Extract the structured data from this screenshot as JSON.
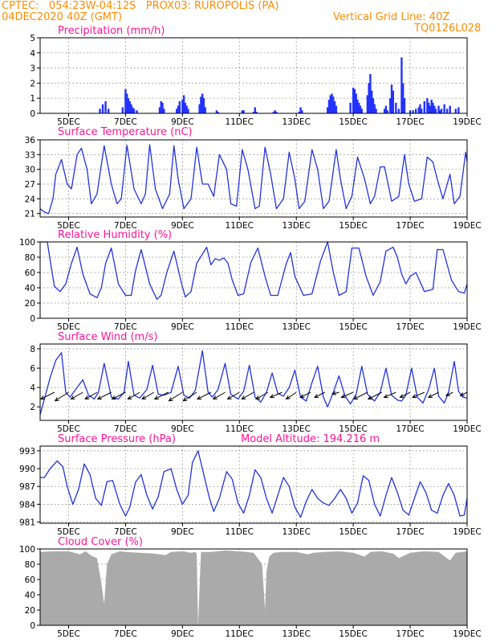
{
  "header": {
    "line1_left": "CPTEC:   054:23W-04:12S   PROX03: RUROPOLIS (PA)",
    "line2_left": "04DEC2020 40Z (GMT)",
    "line2_right": "Vertical Grid Line: 40Z",
    "line3_right": "TQ0126L028"
  },
  "x_axis": {
    "range_days": [
      4.0,
      19.0
    ],
    "ticks": [
      {
        "day": 5,
        "label": "5DEC"
      },
      {
        "day": 7,
        "label": "7DEC"
      },
      {
        "day": 9,
        "label": "9DEC"
      },
      {
        "day": 11,
        "label": "11DEC"
      },
      {
        "day": 13,
        "label": "13DEC"
      },
      {
        "day": 15,
        "label": "15DEC"
      },
      {
        "day": 17,
        "label": "17DEC"
      },
      {
        "day": 19,
        "label": "19DEC"
      }
    ]
  },
  "colors": {
    "title": "#ff1493",
    "header": "#ff8c00",
    "line": "#2233dd",
    "bar": "#2233ff",
    "cloud": "#aaaaaa",
    "wind_arrow": "#000000"
  },
  "chart_data": [
    {
      "id": "precip",
      "type": "bar",
      "title": "Precipitation (mm/h)",
      "ylim": [
        0,
        5
      ],
      "yticks": [
        "0",
        "1",
        "2",
        "3",
        "4",
        "5"
      ],
      "ytick_values": [
        0,
        1,
        2,
        3,
        4,
        5
      ],
      "x_days": [
        6.1,
        6.2,
        6.3,
        6.4,
        6.9,
        7.0,
        7.05,
        7.1,
        7.15,
        7.2,
        7.25,
        7.3,
        7.4,
        8.2,
        8.25,
        8.3,
        8.35,
        8.8,
        8.85,
        8.9,
        9.0,
        9.05,
        9.1,
        9.15,
        9.2,
        9.6,
        9.65,
        9.7,
        9.75,
        9.8,
        10.2,
        10.25,
        11.1,
        11.15,
        11.5,
        11.55,
        11.6,
        12.2,
        12.25,
        12.3,
        13.1,
        13.15,
        13.2,
        14.1,
        14.15,
        14.2,
        14.25,
        14.3,
        14.35,
        14.4,
        14.9,
        15.0,
        15.05,
        15.1,
        15.15,
        15.2,
        15.25,
        15.3,
        15.5,
        15.55,
        15.6,
        15.65,
        15.7,
        15.75,
        15.8,
        16.1,
        16.15,
        16.2,
        16.3,
        16.35,
        16.4,
        16.5,
        16.6,
        16.7,
        16.75,
        16.8,
        17.0,
        17.1,
        17.2,
        17.3,
        17.35,
        17.4,
        17.5,
        17.6,
        17.65,
        17.7,
        17.75,
        17.8,
        17.85,
        17.9,
        18.0,
        18.05,
        18.1,
        18.2,
        18.3,
        18.4,
        18.6,
        18.7
      ],
      "values": [
        0.3,
        0.6,
        0.8,
        0.3,
        0.4,
        1.6,
        1.3,
        1.0,
        0.8,
        0.6,
        0.4,
        0.3,
        0.2,
        0.4,
        0.8,
        0.7,
        0.3,
        0.3,
        0.5,
        0.8,
        0.9,
        1.2,
        0.7,
        0.5,
        0.3,
        0.6,
        1.1,
        1.3,
        1.0,
        0.4,
        0.2,
        0.1,
        0.2,
        0.2,
        0.1,
        0.4,
        0.1,
        0.1,
        0.2,
        0.1,
        0.1,
        0.4,
        0.2,
        0.4,
        0.9,
        1.2,
        1.3,
        1.1,
        0.8,
        0.5,
        0.7,
        1.7,
        1.6,
        1.3,
        0.9,
        0.7,
        0.5,
        0.3,
        1.2,
        2.0,
        2.6,
        1.5,
        1.0,
        0.6,
        0.3,
        0.3,
        0.5,
        0.2,
        1.0,
        1.9,
        1.5,
        0.7,
        0.3,
        3.7,
        2.0,
        1.0,
        0.2,
        0.2,
        0.3,
        0.4,
        0.6,
        0.3,
        0.8,
        1.0,
        0.7,
        0.5,
        0.9,
        0.7,
        0.5,
        0.3,
        0.5,
        0.2,
        0.3,
        0.6,
        0.3,
        0.5,
        0.3,
        0.4
      ]
    },
    {
      "id": "temp",
      "type": "line",
      "title": "Surface Temperature (nC)",
      "ylim": [
        20.3,
        36
      ],
      "yticks": [
        "21",
        "24",
        "27",
        "30",
        "33",
        "36"
      ],
      "ytick_values": [
        21,
        24,
        27,
        30,
        33,
        36
      ],
      "x_days": [
        4.0,
        4.15,
        4.3,
        4.45,
        4.55,
        4.75,
        4.95,
        5.1,
        5.3,
        5.45,
        5.65,
        5.8,
        6.0,
        6.25,
        6.5,
        6.7,
        6.85,
        7.05,
        7.3,
        7.55,
        7.7,
        7.85,
        8.05,
        8.3,
        8.55,
        8.7,
        8.85,
        9.05,
        9.3,
        9.5,
        9.7,
        9.9,
        10.1,
        10.3,
        10.55,
        10.7,
        10.9,
        11.1,
        11.3,
        11.55,
        11.7,
        11.9,
        12.1,
        12.3,
        12.55,
        12.75,
        12.95,
        13.1,
        13.3,
        13.55,
        13.75,
        13.95,
        14.15,
        14.4,
        14.55,
        14.75,
        14.95,
        15.15,
        15.4,
        15.6,
        15.75,
        15.95,
        16.1,
        16.35,
        16.6,
        16.8,
        16.95,
        17.15,
        17.4,
        17.6,
        17.8,
        17.95,
        18.15,
        18.4,
        18.55,
        18.75,
        18.95,
        19.0
      ],
      "values": [
        22.0,
        21.3,
        21.0,
        24.0,
        29.0,
        32.0,
        27.0,
        26.0,
        33.0,
        34.3,
        30.0,
        23.0,
        25.0,
        34.8,
        27.0,
        23.0,
        24.0,
        34.9,
        26.0,
        23.0,
        25.0,
        35.0,
        26.0,
        22.0,
        25.0,
        34.8,
        28.0,
        22.0,
        24.0,
        34.5,
        27.0,
        27.0,
        24.5,
        33.0,
        30.0,
        23.0,
        22.5,
        34.0,
        30.0,
        22.0,
        22.5,
        34.5,
        29.0,
        22.0,
        24.0,
        33.5,
        28.0,
        22.0,
        23.5,
        34.0,
        30.0,
        22.0,
        23.5,
        34.0,
        28.0,
        22.0,
        24.5,
        32.5,
        28.0,
        23.0,
        24.5,
        30.5,
        30.5,
        23.5,
        24.5,
        33.0,
        27.0,
        23.5,
        24.0,
        32.5,
        31.5,
        28.0,
        24.0,
        29.0,
        23.0,
        24.5,
        33.5,
        31.5
      ]
    },
    {
      "id": "rh",
      "type": "line",
      "title": "Relative Humidity (%)",
      "ylim": [
        0,
        100
      ],
      "yticks": [
        "0",
        "20",
        "40",
        "60",
        "80",
        "100"
      ],
      "ytick_values": [
        0,
        20,
        40,
        60,
        80,
        100
      ],
      "x_days": [
        4.0,
        4.1,
        4.25,
        4.5,
        4.7,
        4.9,
        5.1,
        5.3,
        5.5,
        5.75,
        6.0,
        6.15,
        6.3,
        6.5,
        6.75,
        7.0,
        7.2,
        7.35,
        7.55,
        7.85,
        8.1,
        8.25,
        8.45,
        8.7,
        8.95,
        9.1,
        9.3,
        9.5,
        9.85,
        10.0,
        10.15,
        10.3,
        10.45,
        10.6,
        10.75,
        10.95,
        11.15,
        11.4,
        11.65,
        11.9,
        12.1,
        12.35,
        12.65,
        12.8,
        12.95,
        13.25,
        13.55,
        13.85,
        14.1,
        14.3,
        14.5,
        14.75,
        14.95,
        15.2,
        15.45,
        15.7,
        15.95,
        16.15,
        16.4,
        16.55,
        16.7,
        16.85,
        17.0,
        17.2,
        17.5,
        17.8,
        17.95,
        18.15,
        18.45,
        18.7,
        18.9,
        19.0
      ],
      "values": [
        100,
        100,
        100,
        42,
        35,
        45,
        72,
        93,
        58,
        32,
        27,
        40,
        72,
        92,
        45,
        30,
        30,
        62,
        90,
        45,
        25,
        30,
        60,
        88,
        48,
        28,
        35,
        72,
        93,
        70,
        78,
        76,
        79,
        72,
        50,
        30,
        32,
        73,
        92,
        55,
        30,
        30,
        72,
        86,
        55,
        30,
        32,
        75,
        100,
        60,
        30,
        35,
        92,
        92,
        55,
        30,
        48,
        88,
        93,
        80,
        58,
        45,
        55,
        60,
        35,
        38,
        90,
        90,
        50,
        35,
        33,
        45
      ]
    },
    {
      "id": "wind",
      "type": "line",
      "title": "Surface Wind (m/s)",
      "ylim": [
        0.6,
        8.5
      ],
      "yticks": [
        "2",
        "4",
        "6",
        "8"
      ],
      "ytick_values": [
        2,
        4,
        6,
        8
      ],
      "x_days": [
        4.0,
        4.15,
        4.35,
        4.55,
        4.75,
        4.9,
        5.05,
        5.25,
        5.5,
        5.7,
        5.9,
        6.05,
        6.25,
        6.5,
        6.75,
        6.95,
        7.1,
        7.3,
        7.5,
        7.75,
        7.95,
        8.15,
        8.35,
        8.6,
        8.85,
        9.05,
        9.25,
        9.45,
        9.7,
        9.9,
        10.05,
        10.25,
        10.5,
        10.7,
        10.95,
        11.15,
        11.35,
        11.55,
        11.75,
        11.95,
        12.15,
        12.35,
        12.55,
        12.75,
        12.95,
        13.15,
        13.35,
        13.55,
        13.75,
        13.95,
        14.1,
        14.3,
        14.5,
        14.7,
        14.9,
        15.1,
        15.3,
        15.5,
        15.75,
        15.95,
        16.15,
        16.35,
        16.55,
        16.7,
        16.85,
        17.05,
        17.25,
        17.45,
        17.65,
        17.85,
        18.0,
        18.2,
        18.35,
        18.55,
        18.7,
        18.85,
        19.0
      ],
      "values": [
        1.2,
        2.8,
        5.0,
        6.8,
        7.6,
        3.5,
        3.0,
        3.8,
        4.8,
        3.2,
        2.8,
        3.5,
        6.5,
        3.0,
        2.8,
        3.5,
        6.7,
        3.2,
        2.9,
        3.8,
        6.3,
        3.3,
        3.2,
        3.5,
        6.2,
        3.2,
        2.9,
        3.7,
        7.8,
        3.5,
        3.0,
        3.8,
        6.5,
        3.3,
        2.8,
        3.6,
        6.3,
        3.0,
        2.5,
        3.5,
        5.5,
        3.4,
        3.1,
        4.0,
        5.8,
        3.0,
        2.6,
        4.5,
        6.2,
        3.0,
        2.0,
        3.5,
        5.2,
        3.2,
        2.3,
        3.3,
        6.2,
        3.3,
        2.6,
        3.5,
        6.0,
        3.2,
        2.7,
        2.6,
        3.2,
        6.0,
        3.0,
        2.4,
        3.8,
        6.0,
        3.1,
        2.4,
        3.5,
        6.7,
        3.6,
        3.0,
        2.9
      ],
      "arrows_x_days": [
        4.5,
        5.0,
        5.5,
        6.0,
        6.5,
        7.0,
        7.5,
        8.0,
        8.5,
        9.0,
        9.5,
        10.0,
        10.5,
        11.0,
        11.5,
        12.0,
        12.5,
        13.0,
        13.5,
        14.0,
        14.5,
        15.0,
        15.5,
        16.0,
        16.5,
        17.0,
        17.5,
        18.0,
        18.5,
        19.0
      ],
      "arrows_u": [
        -4,
        -4,
        -3.5,
        -3.5,
        -4,
        -4,
        -3.5,
        -3.5,
        -4,
        -4,
        -4,
        -4,
        -3.5,
        -3.5,
        -3.5,
        -3.5,
        -3.5,
        -3,
        -3,
        -3,
        -2,
        -3.5,
        -4,
        -4,
        -3.5,
        -3,
        -3.5,
        -3,
        -2,
        -2
      ],
      "arrows_v": [
        -2,
        -2.5,
        -2,
        -2,
        -2,
        -2,
        -2,
        -2,
        -2,
        -2.5,
        -2.5,
        -2,
        -2,
        -2,
        -2,
        -2,
        -1.5,
        -2,
        -1.5,
        -1.5,
        -0.5,
        -1.5,
        -2,
        -2,
        -1.5,
        -1.5,
        -1.5,
        -1.5,
        -1,
        -1
      ]
    },
    {
      "id": "pres",
      "type": "line",
      "title": "Surface Pressure (hPa)",
      "subtitle": "Model Altitude: 194.216 m",
      "ylim": [
        980.8,
        993.8
      ],
      "yticks": [
        "981",
        "984",
        "987",
        "990",
        "993"
      ],
      "ytick_values": [
        981,
        984,
        987,
        990,
        993
      ],
      "x_days": [
        4.0,
        4.15,
        4.35,
        4.6,
        4.8,
        4.95,
        5.15,
        5.35,
        5.55,
        5.75,
        5.95,
        6.15,
        6.35,
        6.55,
        6.8,
        7.0,
        7.15,
        7.35,
        7.55,
        7.75,
        7.95,
        8.15,
        8.35,
        8.6,
        8.8,
        9.0,
        9.2,
        9.35,
        9.55,
        9.75,
        9.95,
        10.1,
        10.3,
        10.55,
        10.75,
        10.95,
        11.15,
        11.35,
        11.55,
        11.75,
        11.95,
        12.15,
        12.35,
        12.55,
        12.75,
        12.95,
        13.15,
        13.35,
        13.55,
        13.75,
        13.95,
        14.15,
        14.35,
        14.55,
        14.75,
        14.95,
        15.15,
        15.35,
        15.55,
        15.75,
        15.95,
        16.15,
        16.35,
        16.55,
        16.75,
        16.95,
        17.15,
        17.35,
        17.55,
        17.75,
        17.95,
        18.15,
        18.35,
        18.55,
        18.75,
        18.9,
        19.0
      ],
      "values": [
        988.5,
        988.5,
        990.0,
        991.3,
        990.3,
        987.0,
        984.0,
        986.5,
        990.8,
        989.0,
        985.0,
        983.8,
        987.8,
        988.0,
        984.0,
        982.0,
        983.5,
        987.7,
        989.0,
        985.5,
        983.2,
        985.3,
        989.5,
        990.0,
        986.5,
        984.0,
        985.5,
        991.0,
        993.0,
        989.0,
        985.0,
        982.8,
        985.0,
        989.5,
        988.2,
        984.2,
        982.5,
        985.5,
        989.8,
        988.5,
        985.0,
        982.5,
        985.5,
        988.5,
        987.0,
        983.5,
        981.8,
        984.5,
        986.5,
        985.0,
        984.2,
        983.8,
        985.0,
        986.5,
        985.0,
        982.5,
        984.2,
        988.8,
        988.0,
        984.0,
        982.0,
        985.5,
        988.5,
        986.0,
        983.0,
        982.2,
        985.0,
        987.8,
        986.0,
        983.0,
        982.5,
        985.5,
        987.5,
        985.5,
        982.0,
        982.2,
        985.0
      ]
    },
    {
      "id": "cloud",
      "type": "area",
      "title": "Cloud Cover (%)",
      "ylim": [
        0,
        100
      ],
      "yticks": [
        "0",
        "20",
        "40",
        "60",
        "80",
        "100"
      ],
      "ytick_values": [
        0,
        20,
        40,
        60,
        80,
        100
      ],
      "x_days": [
        4.0,
        4.5,
        5.0,
        5.4,
        5.6,
        5.8,
        6.0,
        6.15,
        6.25,
        6.35,
        6.5,
        6.8,
        7.0,
        7.5,
        8.0,
        8.4,
        8.6,
        9.0,
        9.3,
        9.45,
        9.5,
        9.55,
        9.65,
        10.0,
        10.5,
        11.0,
        11.5,
        11.8,
        11.9,
        11.95,
        12.05,
        12.2,
        12.5,
        13.0,
        13.4,
        13.6,
        14.0,
        14.5,
        15.0,
        15.4,
        15.6,
        16.0,
        16.4,
        16.6,
        17.0,
        17.5,
        18.0,
        18.4,
        18.6,
        19.0
      ],
      "values": [
        96,
        97,
        97,
        93,
        97,
        91,
        88,
        55,
        28,
        80,
        93,
        97,
        96,
        95,
        94,
        92,
        96,
        97,
        95,
        96,
        94,
        0,
        96,
        96,
        98,
        97,
        95,
        80,
        20,
        70,
        90,
        95,
        96,
        96,
        93,
        95,
        96,
        97,
        95,
        90,
        96,
        97,
        94,
        88,
        95,
        97,
        96,
        85,
        95,
        97
      ]
    }
  ]
}
